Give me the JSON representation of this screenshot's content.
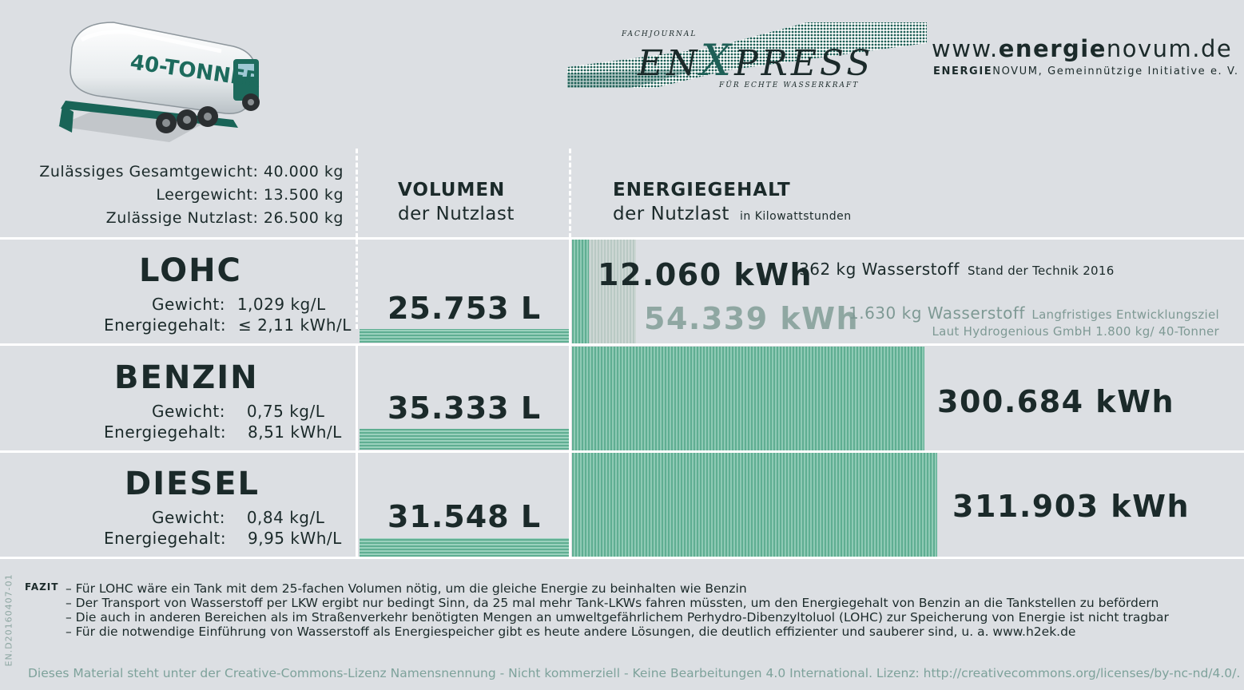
{
  "header": {
    "truck_label": "40-TONNER",
    "journal_small": "FACHJOURNAL",
    "journal_title_pre": "EN",
    "journal_title_x": "X",
    "journal_title_post": "PRESS",
    "journal_tagline": "FÜR ECHTE WASSERKRAFT",
    "website_pre": "www.",
    "website_bold": "energie",
    "website_post": "novum.de",
    "org_bold": "ENERGIE",
    "org_light": "NOVUM",
    "org_rest": ", Gemeinnützige Initiative e. V."
  },
  "specs": [
    "Zulässiges Gesamtgewicht: 40.000 kg",
    "Leergewicht: 13.500 kg",
    "Zulässige Nutzlast: 26.500 kg"
  ],
  "columns": {
    "volume_title": "VOLUMEN",
    "volume_subtitle": "der Nutzlast",
    "energy_title": "ENERGIEGEHALT",
    "energy_subtitle": "der Nutzlast",
    "energy_unit": "in Kilowattstunden"
  },
  "chart_data": {
    "type": "bar",
    "categories": [
      "LOHC",
      "BENZIN",
      "DIESEL"
    ],
    "volume_unit": "L",
    "volume_values": [
      25753,
      35333,
      31548
    ],
    "energy_unit": "kWh",
    "energy_values": [
      12060,
      300684,
      311903
    ],
    "lohc_longterm_energy": 54339
  },
  "fuels": [
    {
      "name": "LOHC",
      "weight_label": "Gewicht:",
      "weight_value": "1,029 kg/L",
      "energy_label": "Energiegehalt:",
      "energy_value": "≤ 2,11 kWh/L",
      "volume_text": "25.753 L",
      "energy_text": "12.060 kWh"
    },
    {
      "name": "BENZIN",
      "weight_label": "Gewicht:",
      "weight_value": "0,75  kg/L",
      "energy_label": "Energiegehalt:",
      "energy_value": "8,51  kWh/L",
      "volume_text": "35.333 L",
      "energy_text": "300.684 kWh"
    },
    {
      "name": "DIESEL",
      "weight_label": "Gewicht:",
      "weight_value": "0,84  kg/L",
      "energy_label": "Energiegehalt:",
      "energy_value": "9,95  kWh/L",
      "volume_text": "31.548 L",
      "energy_text": "311.903 kWh"
    }
  ],
  "lohc_notes": {
    "current_h2": "362 kg Wasserstoff",
    "current_note": "Stand der Technik 2016",
    "longterm_energy": "54.339 kWh",
    "longterm_h2": "1.630 kg Wasserstoff",
    "longterm_note": "Langfristiges Entwicklungsziel",
    "hydrogenious_note": "Laut Hydrogenious GmbH 1.800 kg/ 40-Tonner"
  },
  "fazit": {
    "label": "FAZIT",
    "lines": [
      "– Für LOHC wäre ein Tank mit dem 25-fachen Volumen nötig, um die gleiche Energie zu beinhalten wie Benzin",
      "– Der Transport von Wasserstoff per LKW ergibt nur bedingt Sinn, da 25 mal mehr Tank-LKWs fahren müssten, um den Energiegehalt von Benzin an die Tankstellen zu befördern",
      "– Die auch in anderen Bereichen als im Straßenverkehr benötigten Mengen an umweltgefährlichem Perhydro-Dibenzyltoluol (LOHC) zur Speicherung von Energie ist nicht tragbar",
      "– Für die notwendige Einführung von Wasserstoff als Energiespeicher gibt es heute andere Lösungen, die deutlich effizienter und sauberer sind, u. a. www.h2ek.de"
    ]
  },
  "doc_id": "EN.D20160407-01",
  "license": "Dieses Material steht unter der Creative-Commons-Lizenz Namensnennung - Nicht kommerziell - Keine Bearbeitungen 4.0 International. Lizenz: http://creativecommons.org/licenses/by-nc-nd/4.0/."
}
